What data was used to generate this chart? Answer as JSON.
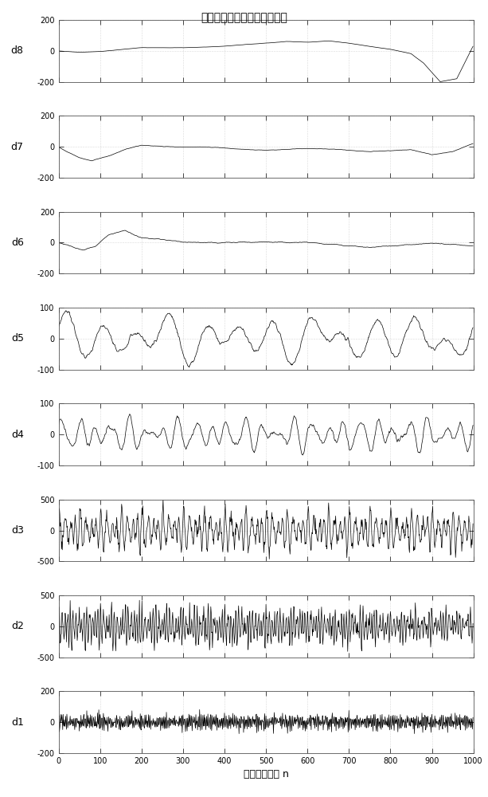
{
  "title": "做任务时的细节系数重构信号",
  "xlabel": "样本采样点数 n",
  "subplots": [
    "d8",
    "d7",
    "d6",
    "d5",
    "d4",
    "d3",
    "d2",
    "d1"
  ],
  "ylims": {
    "d8": [
      -200,
      200
    ],
    "d7": [
      -200,
      200
    ],
    "d6": [
      -200,
      200
    ],
    "d5": [
      -100,
      100
    ],
    "d4": [
      -100,
      100
    ],
    "d3": [
      -500,
      500
    ],
    "d2": [
      -500,
      500
    ],
    "d1": [
      -200,
      200
    ]
  },
  "yticks": {
    "d8": [
      -200,
      0,
      200
    ],
    "d7": [
      -200,
      0,
      200
    ],
    "d6": [
      -200,
      0,
      200
    ],
    "d5": [
      -100,
      0,
      100
    ],
    "d4": [
      -100,
      0,
      100
    ],
    "d3": [
      -500,
      0,
      500
    ],
    "d2": [
      -500,
      0,
      500
    ],
    "d1": [
      -200,
      0,
      200
    ]
  },
  "xlim": [
    0,
    1000
  ],
  "xticks": [
    0,
    100,
    200,
    300,
    400,
    500,
    600,
    700,
    800,
    900,
    1000
  ],
  "n_points": 1000,
  "line_color": "#000000",
  "line_width": 0.5,
  "bg_color": "#ffffff"
}
